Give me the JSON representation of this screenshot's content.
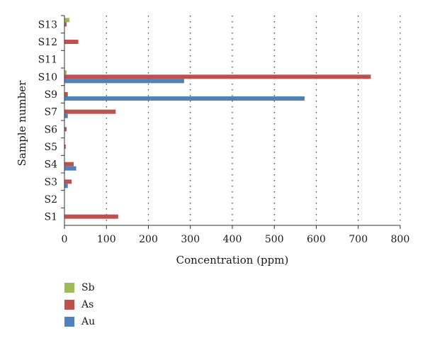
{
  "chart_data": {
    "type": "bar",
    "orientation": "horizontal",
    "ylabel": "Sample number",
    "xlabel": "Concentration (ppm)",
    "categories": [
      "S1",
      "S2",
      "S3",
      "S4",
      "S5",
      "S6",
      "S7",
      "S9",
      "S10",
      "S11",
      "S12",
      "S13"
    ],
    "xlim": [
      0,
      800
    ],
    "xticks": [
      0,
      100,
      200,
      300,
      400,
      500,
      600,
      700,
      800
    ],
    "grid": "vertical dotted",
    "legend_position": "bottom-left",
    "series": [
      {
        "name": "Sb",
        "color": "#9bbb59",
        "values": [
          0,
          0,
          0,
          0,
          0,
          0,
          0,
          0,
          5,
          0,
          0,
          12
        ]
      },
      {
        "name": "As",
        "color": "#c0504d",
        "values": [
          128,
          0,
          17,
          22,
          3,
          5,
          122,
          8,
          730,
          0,
          33,
          5
        ]
      },
      {
        "name": "Au",
        "color": "#4f81bd",
        "values": [
          0,
          0,
          8,
          28,
          0,
          0,
          8,
          572,
          285,
          0,
          0,
          0
        ]
      }
    ]
  }
}
